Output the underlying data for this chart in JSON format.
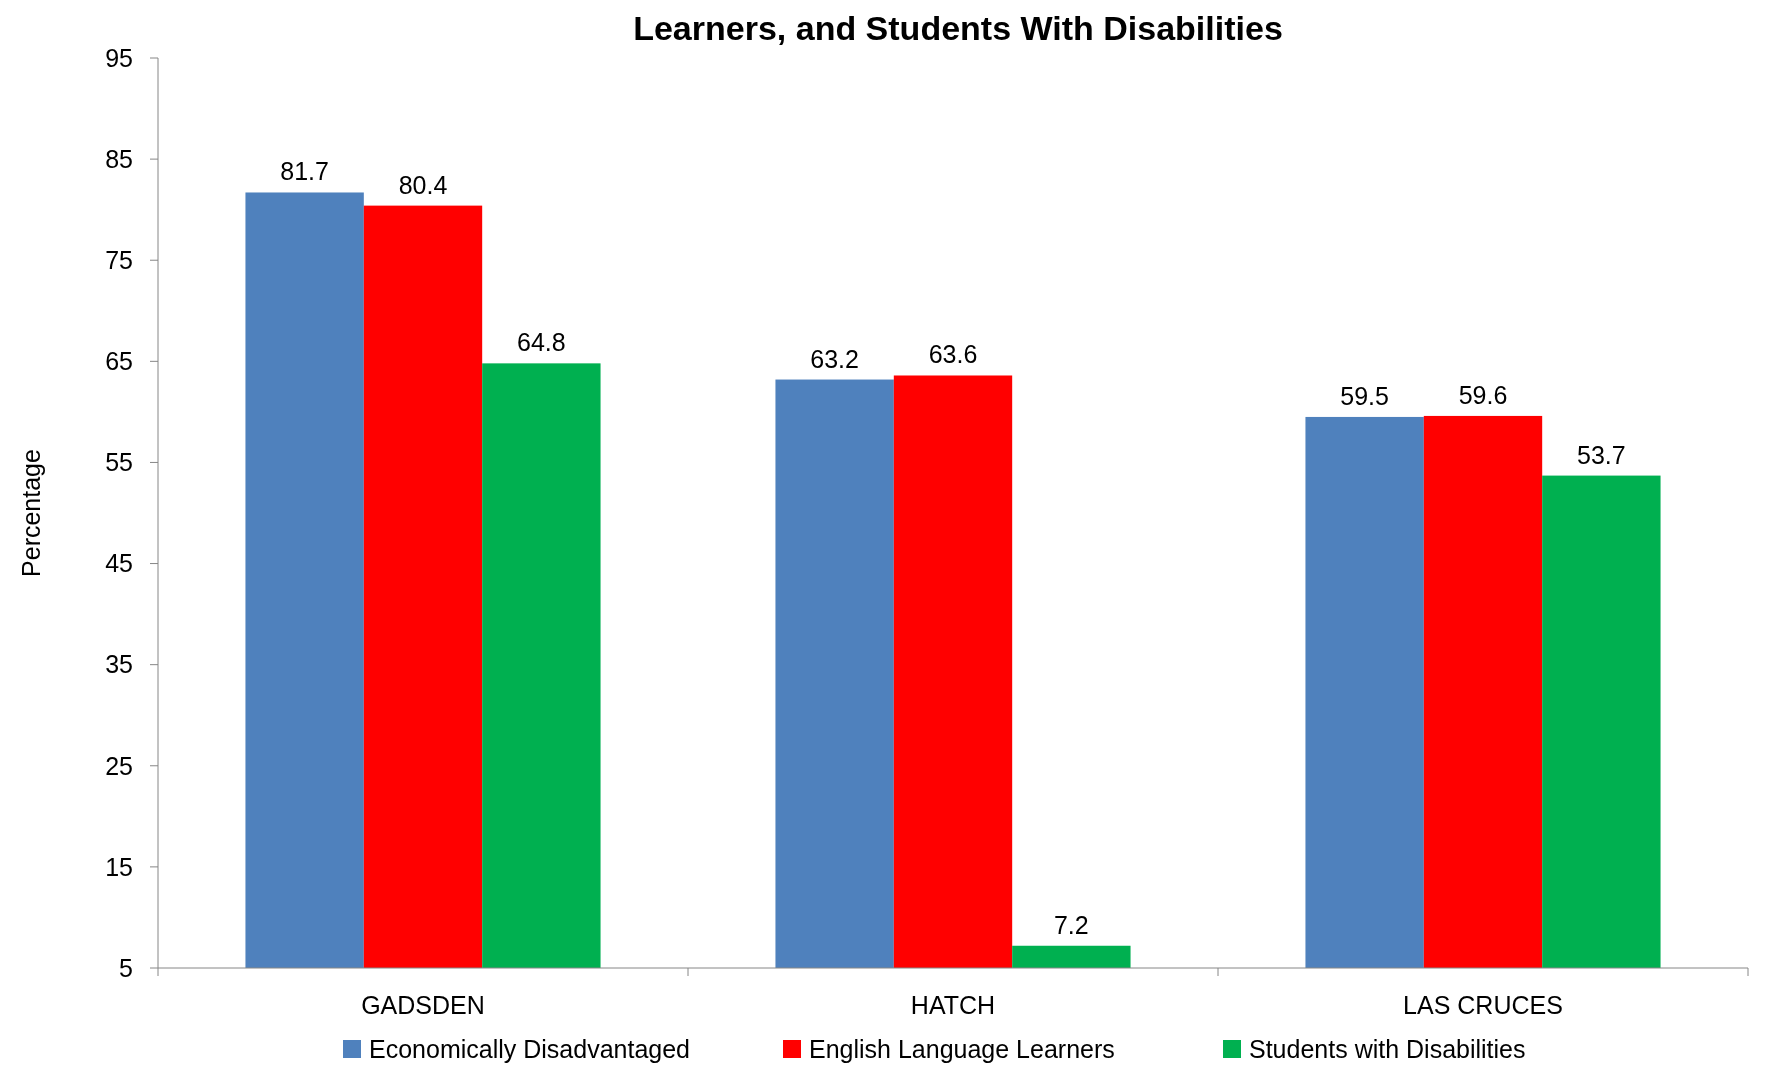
{
  "chart_data": {
    "type": "bar",
    "title": "Learners, and Students With Disabilities",
    "ylabel": "Percentage",
    "categories": [
      "GADSDEN",
      "HATCH",
      "LAS CRUCES"
    ],
    "series": [
      {
        "name": "Economically Disadvantaged",
        "color": "#4f81bd",
        "values": [
          81.7,
          63.2,
          59.5
        ]
      },
      {
        "name": "English Language Learners",
        "color": "#ff0000",
        "values": [
          80.4,
          63.6,
          59.6
        ]
      },
      {
        "name": "Students with Disabilities",
        "color": "#00b050",
        "values": [
          64.8,
          7.2,
          53.7
        ]
      }
    ],
    "ylim": [
      5,
      95
    ],
    "yticks": [
      5,
      15,
      25,
      35,
      45,
      55,
      65,
      75,
      85,
      95
    ],
    "grid": false,
    "data_labels": true,
    "legend": "bottom"
  }
}
